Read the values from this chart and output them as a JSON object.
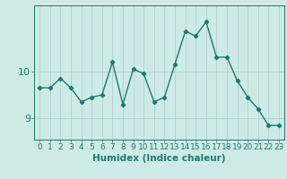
{
  "x": [
    0,
    1,
    2,
    3,
    4,
    5,
    6,
    7,
    8,
    9,
    10,
    11,
    12,
    13,
    14,
    15,
    16,
    17,
    18,
    19,
    20,
    21,
    22,
    23
  ],
  "y": [
    9.65,
    9.65,
    9.85,
    9.65,
    9.35,
    9.45,
    9.5,
    10.2,
    9.3,
    10.05,
    9.95,
    9.35,
    9.45,
    10.15,
    10.85,
    10.75,
    11.05,
    10.3,
    10.3,
    9.8,
    9.45,
    9.2,
    8.85,
    8.85
  ],
  "line_color": "#1a7a6e",
  "marker": "D",
  "marker_size": 2.2,
  "linewidth": 1.0,
  "xlabel": "Humidex (Indice chaleur)",
  "xlabel_fontsize": 7.5,
  "yticks": [
    9,
    10
  ],
  "ylim": [
    8.55,
    11.4
  ],
  "xlim": [
    -0.5,
    23.5
  ],
  "bg_color": "#ceeae6",
  "grid_color": "#aaccca",
  "tick_fontsize": 6.5,
  "ytick_fontsize": 8
}
